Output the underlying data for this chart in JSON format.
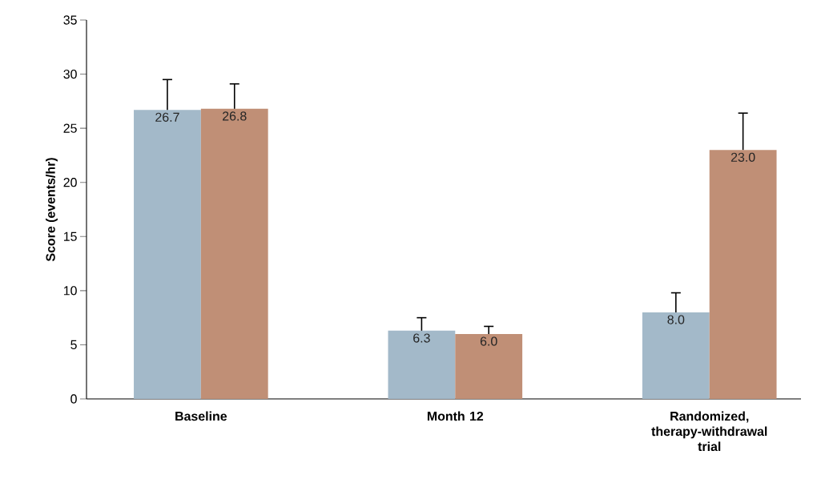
{
  "chart_data": {
    "type": "bar",
    "ylabel": "Score (events/hr)",
    "categories": [
      "Baseline",
      "Month 12",
      "Randomized, therapy-withdrawal trial"
    ],
    "series": [
      {
        "color": "#a3b9c9",
        "values": [
          26.7,
          6.3,
          8.0
        ],
        "value_labels": [
          "26.7",
          "6.3",
          "8.0"
        ],
        "errors": [
          [
            26.7,
            29.5
          ],
          [
            6.3,
            7.5
          ],
          [
            8.0,
            9.8
          ]
        ]
      },
      {
        "color": "#c08f76",
        "values": [
          26.8,
          6.0,
          23.0
        ],
        "value_labels": [
          "26.8",
          "6.0",
          "23.0"
        ],
        "errors": [
          [
            26.8,
            29.1
          ],
          [
            6.0,
            6.7
          ],
          [
            23.0,
            26.4
          ]
        ]
      }
    ],
    "ylim": [
      0,
      35
    ],
    "yticks": [
      0,
      5,
      10,
      15,
      20,
      25,
      30,
      35
    ],
    "grid": false
  }
}
